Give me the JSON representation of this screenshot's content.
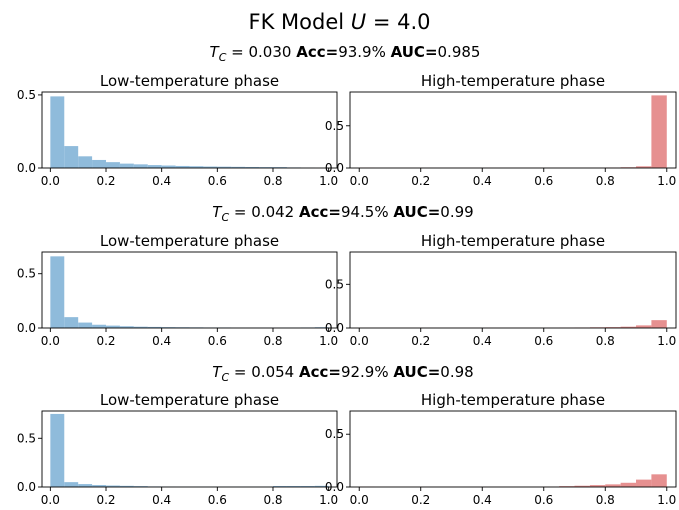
{
  "figure": {
    "title_prefix": "FK Model ",
    "title_var": "U",
    "title_value": " = 4.0"
  },
  "colors": {
    "low": "#8fbbdb",
    "high": "#e69090"
  },
  "rows": [
    {
      "tc_symbol": "T",
      "tc_sub": "C",
      "tc_value": " = 0.030 ",
      "acc_label": "Acc=",
      "acc_value": "93.9% ",
      "auc_label": "AUC=",
      "auc_value": "0.985"
    },
    {
      "tc_symbol": "T",
      "tc_sub": "C",
      "tc_value": " = 0.042 ",
      "acc_label": "Acc=",
      "acc_value": "94.5% ",
      "auc_label": "AUC=",
      "auc_value": "0.99"
    },
    {
      "tc_symbol": "T",
      "tc_sub": "C",
      "tc_value": " = 0.054 ",
      "acc_label": "Acc=",
      "acc_value": "92.9% ",
      "auc_label": "AUC=",
      "auc_value": "0.98"
    }
  ],
  "chart_data": [
    {
      "type": "bar",
      "title": "Low-temperature phase",
      "row": 0,
      "col": 0,
      "x_ticks": [
        "0.0",
        "0.2",
        "0.4",
        "0.6",
        "0.8",
        "1.0"
      ],
      "y_ticks": [
        "0.0",
        "0.5"
      ],
      "ylim": [
        0,
        0.52
      ],
      "xlim": [
        -0.03,
        1.03
      ],
      "bin_edges": [
        0.0,
        0.05,
        0.1,
        0.15,
        0.2,
        0.25,
        0.3,
        0.35,
        0.4,
        0.45,
        0.5,
        0.55,
        0.6,
        0.65,
        0.7,
        0.75,
        0.8,
        0.85,
        0.9,
        0.95,
        1.0
      ],
      "values": [
        0.49,
        0.15,
        0.08,
        0.055,
        0.04,
        0.03,
        0.025,
        0.02,
        0.017,
        0.014,
        0.012,
        0.01,
        0.009,
        0.008,
        0.007,
        0.006,
        0.006,
        0.004,
        0.002,
        0.0
      ]
    },
    {
      "type": "bar",
      "title": "High-temperature phase",
      "row": 0,
      "col": 1,
      "x_ticks": [
        "0.0",
        "0.2",
        "0.4",
        "0.6",
        "0.8",
        "1.0"
      ],
      "y_ticks": [
        "0.0",
        "0.5"
      ],
      "ylim": [
        0,
        0.9
      ],
      "xlim": [
        -0.03,
        1.03
      ],
      "bin_edges": [
        0.0,
        0.05,
        0.1,
        0.15,
        0.2,
        0.25,
        0.3,
        0.35,
        0.4,
        0.45,
        0.5,
        0.55,
        0.6,
        0.65,
        0.7,
        0.75,
        0.8,
        0.85,
        0.9,
        0.95,
        1.0
      ],
      "values": [
        0.004,
        0.002,
        0.002,
        0.002,
        0.002,
        0.002,
        0.002,
        0.002,
        0.002,
        0.002,
        0.002,
        0.002,
        0.002,
        0.002,
        0.003,
        0.003,
        0.006,
        0.009,
        0.02,
        0.86
      ]
    },
    {
      "type": "bar",
      "title": "Low-temperature phase",
      "row": 1,
      "col": 0,
      "x_ticks": [
        "0.0",
        "0.2",
        "0.4",
        "0.6",
        "0.8",
        "1.0"
      ],
      "y_ticks": [
        "0.0",
        "0.5"
      ],
      "ylim": [
        0,
        0.7
      ],
      "xlim": [
        -0.03,
        1.03
      ],
      "bin_edges": [
        0.0,
        0.05,
        0.1,
        0.15,
        0.2,
        0.25,
        0.3,
        0.35,
        0.4,
        0.45,
        0.5,
        0.55,
        0.6,
        0.65,
        0.7,
        0.75,
        0.8,
        0.85,
        0.9,
        0.95,
        1.0
      ],
      "values": [
        0.66,
        0.1,
        0.05,
        0.03,
        0.022,
        0.016,
        0.012,
        0.01,
        0.008,
        0.007,
        0.006,
        0.005,
        0.005,
        0.004,
        0.004,
        0.004,
        0.004,
        0.004,
        0.005,
        0.007
      ]
    },
    {
      "type": "bar",
      "title": "High-temperature phase",
      "row": 1,
      "col": 1,
      "x_ticks": [
        "0.0",
        "0.2",
        "0.4",
        "0.6",
        "0.8",
        "1.0"
      ],
      "y_ticks": [
        "0.0",
        "0.5"
      ],
      "ylim": [
        0,
        0.87
      ],
      "xlim": [
        -0.03,
        1.03
      ],
      "bin_edges": [
        0.0,
        0.05,
        0.1,
        0.15,
        0.2,
        0.25,
        0.3,
        0.35,
        0.4,
        0.45,
        0.5,
        0.55,
        0.6,
        0.65,
        0.7,
        0.75,
        0.8,
        0.85,
        0.9,
        0.95,
        1.0
      ],
      "values": [
        0.003,
        0.002,
        0.002,
        0.002,
        0.002,
        0.002,
        0.002,
        0.002,
        0.002,
        0.002,
        0.002,
        0.002,
        0.002,
        0.004,
        0.006,
        0.008,
        0.01,
        0.015,
        0.03,
        0.09
      ]
    },
    {
      "type": "bar",
      "title": "Low-temperature phase",
      "row": 2,
      "col": 0,
      "x_ticks": [
        "0.0",
        "0.2",
        "0.4",
        "0.6",
        "0.8",
        "1.0"
      ],
      "y_ticks": [
        "0.0",
        "0.5"
      ],
      "ylim": [
        0,
        0.78
      ],
      "xlim": [
        -0.03,
        1.03
      ],
      "bin_edges": [
        0.0,
        0.05,
        0.1,
        0.15,
        0.2,
        0.25,
        0.3,
        0.35,
        0.4,
        0.45,
        0.5,
        0.55,
        0.6,
        0.65,
        0.7,
        0.75,
        0.8,
        0.85,
        0.9,
        0.95,
        1.0
      ],
      "values": [
        0.75,
        0.05,
        0.03,
        0.02,
        0.015,
        0.012,
        0.009,
        0.006,
        0.005,
        0.004,
        0.004,
        0.004,
        0.004,
        0.004,
        0.004,
        0.004,
        0.01,
        0.01,
        0.01,
        0.012
      ]
    },
    {
      "type": "bar",
      "title": "High-temperature phase",
      "row": 2,
      "col": 1,
      "x_ticks": [
        "0.0",
        "0.2",
        "0.4",
        "0.6",
        "0.8",
        "1.0"
      ],
      "y_ticks": [
        "0.0",
        "0.5"
      ],
      "ylim": [
        0,
        0.72
      ],
      "xlim": [
        -0.03,
        1.03
      ],
      "bin_edges": [
        0.0,
        0.05,
        0.1,
        0.15,
        0.2,
        0.25,
        0.3,
        0.35,
        0.4,
        0.45,
        0.5,
        0.55,
        0.6,
        0.65,
        0.7,
        0.75,
        0.8,
        0.85,
        0.9,
        0.95,
        1.0
      ],
      "values": [
        0.003,
        0.002,
        0.002,
        0.002,
        0.002,
        0.002,
        0.002,
        0.002,
        0.002,
        0.002,
        0.002,
        0.002,
        0.004,
        0.008,
        0.012,
        0.018,
        0.025,
        0.04,
        0.07,
        0.12
      ]
    }
  ]
}
